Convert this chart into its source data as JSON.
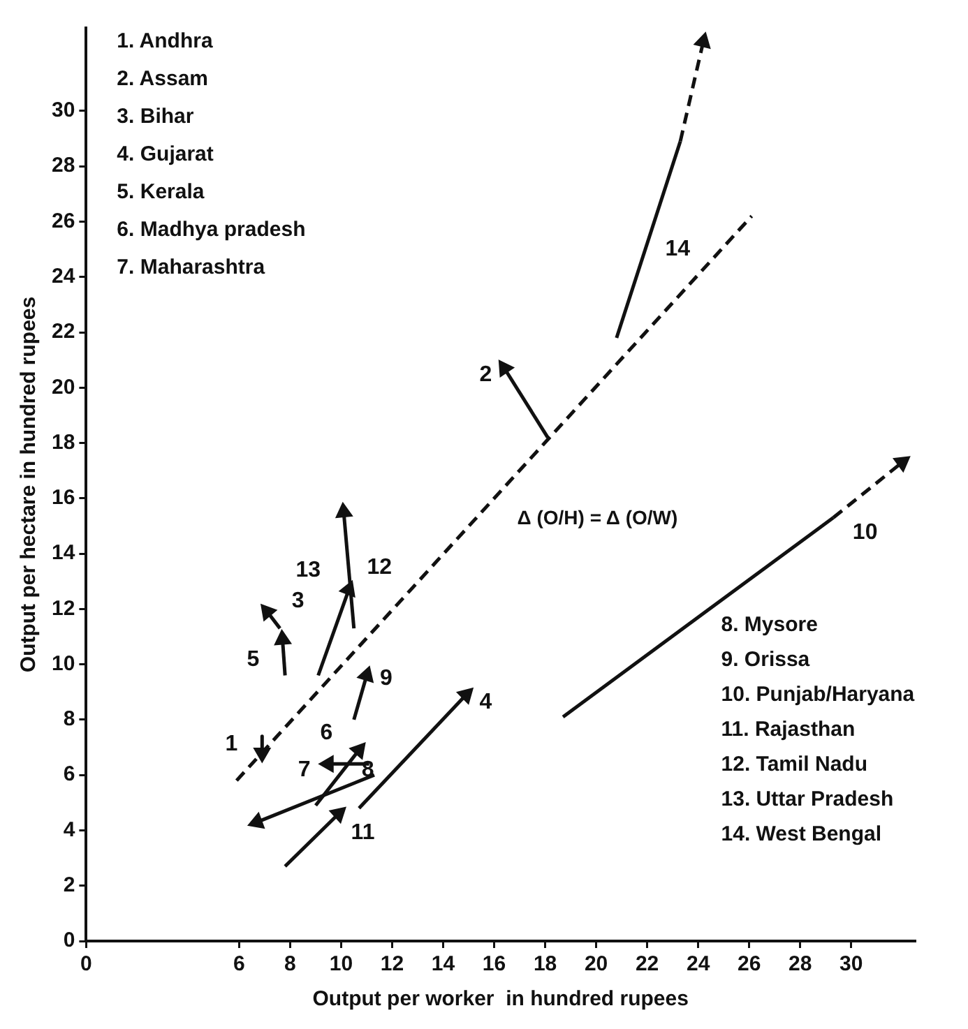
{
  "chart_data": {
    "type": "line",
    "xlabel": "Output per worker  in hundred rupees",
    "ylabel": "Output per hectare in hundred rupees",
    "xlim": [
      0,
      32.5
    ],
    "xticks": [
      0,
      6,
      8,
      10,
      12,
      14,
      16,
      18,
      20,
      22,
      24,
      26,
      28,
      30
    ],
    "ylim": [
      0,
      33
    ],
    "yticks": [
      0,
      2,
      4,
      6,
      8,
      10,
      12,
      14,
      16,
      18,
      20,
      22,
      24,
      26,
      28,
      30
    ],
    "grid": false,
    "legend": false,
    "line_style": "solid",
    "marker": "triangle",
    "series": [
      {
        "name": "Δ (O/H) = Δ (O/W)",
        "color": "#111111",
        "x": [
          5.9,
          26.1
        ],
        "values": [
          5.8,
          26.2
        ],
        "line_style": "dashed",
        "marker": "none"
      },
      {
        "name": "1",
        "color": "#111111",
        "x": [
          6.9,
          6.9
        ],
        "values": [
          7.4,
          6.8
        ]
      },
      {
        "name": "2",
        "color": "#111111",
        "x": [
          18.1,
          16.4
        ],
        "values": [
          18.2,
          20.7
        ]
      },
      {
        "name": "3",
        "color": "#111111",
        "x": [
          7.6,
          7.1
        ],
        "values": [
          11.3,
          11.9
        ]
      },
      {
        "name": "4",
        "color": "#111111",
        "x": [
          10.7,
          14.9
        ],
        "values": [
          4.8,
          8.9
        ]
      },
      {
        "name": "5",
        "color": "#111111",
        "x": [
          7.8,
          7.7
        ],
        "values": [
          9.6,
          10.9
        ]
      },
      {
        "name": "6",
        "color": "#111111",
        "x": [
          11.1,
          9.5
        ],
        "values": [
          6.4,
          6.4
        ]
      },
      {
        "name": "7",
        "color": "#111111",
        "x": [
          11.3,
          6.7
        ],
        "values": [
          6.0,
          4.3
        ]
      },
      {
        "name": "8",
        "color": "#111111",
        "x": [
          9.0,
          10.7
        ],
        "values": [
          4.9,
          6.9
        ]
      },
      {
        "name": "9",
        "color": "#111111",
        "x": [
          10.5,
          11.0
        ],
        "values": [
          8.0,
          9.6
        ]
      },
      {
        "name": "10",
        "color": "#111111",
        "x": [
          18.7,
          29.3
        ],
        "values": [
          8.1,
          15.3
        ],
        "marker": "none"
      },
      {
        "color": "#111111",
        "x": [
          29.3,
          32.0
        ],
        "values": [
          15.3,
          17.3
        ],
        "line_style": "dashed"
      },
      {
        "name": "11",
        "color": "#111111",
        "x": [
          7.8,
          9.9
        ],
        "values": [
          2.7,
          4.6
        ]
      },
      {
        "name": "12",
        "color": "#111111",
        "x": [
          10.5,
          10.1
        ],
        "values": [
          11.3,
          15.5
        ]
      },
      {
        "name": "13",
        "color": "#111111",
        "x": [
          9.1,
          10.3
        ],
        "values": [
          9.6,
          12.7
        ]
      },
      {
        "name": "14",
        "color": "#111111",
        "x": [
          20.8,
          23.3
        ],
        "values": [
          21.8,
          28.9
        ],
        "marker": "none"
      },
      {
        "color": "#111111",
        "x": [
          23.3,
          24.2
        ],
        "values": [
          28.9,
          32.5
        ],
        "line_style": "dashed"
      }
    ],
    "annotations": [
      "1. Andhra",
      "2. Assam",
      "3. Bihar",
      "4. Gujarat",
      "5. Kerala",
      "6. Madhya pradesh",
      "7. Maharashtra",
      "8. Mysore",
      "9. Orissa",
      "10. Punjab/Haryana",
      "11. Rajasthan",
      "12. Tamil Nadu",
      "13. Uttar Pradesh",
      "14. West Bengal"
    ]
  }
}
